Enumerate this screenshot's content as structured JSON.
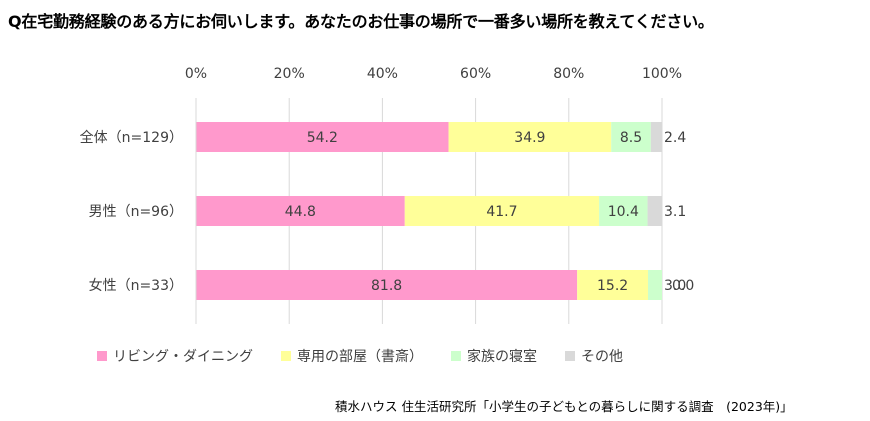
{
  "question": "Q在宅勤務経験のある方にお伺いします。あなたのお仕事の場所で一番多い場所を教えてください。",
  "source": "積水ハウス 住生活研究所「小学生の子どもとの暮らしに関する調査　(2023年)」",
  "chart_data": {
    "type": "bar",
    "orientation": "horizontal",
    "stacked": true,
    "percent": true,
    "categories": [
      "全体（n=129）",
      "男性（n=96）",
      "女性（n=33）"
    ],
    "series": [
      {
        "name": "リビング・ダイニング",
        "values": [
          54.2,
          44.8,
          81.8
        ],
        "color": "#ff99cc"
      },
      {
        "name": "専用の部屋（書斎）",
        "values": [
          34.9,
          41.7,
          15.2
        ],
        "color": "#ffff99"
      },
      {
        "name": "家族の寝室",
        "values": [
          8.5,
          10.4,
          3.0
        ],
        "color": "#ccffcc"
      },
      {
        "name": "その他",
        "values": [
          2.4,
          3.1,
          0.0
        ],
        "color": "#d9d9d9"
      }
    ],
    "x_ticks": [
      "0%",
      "20%",
      "40%",
      "60%",
      "80%",
      "100%"
    ],
    "xlim": [
      0,
      100
    ],
    "grid": true,
    "legend_position": "bottom"
  }
}
